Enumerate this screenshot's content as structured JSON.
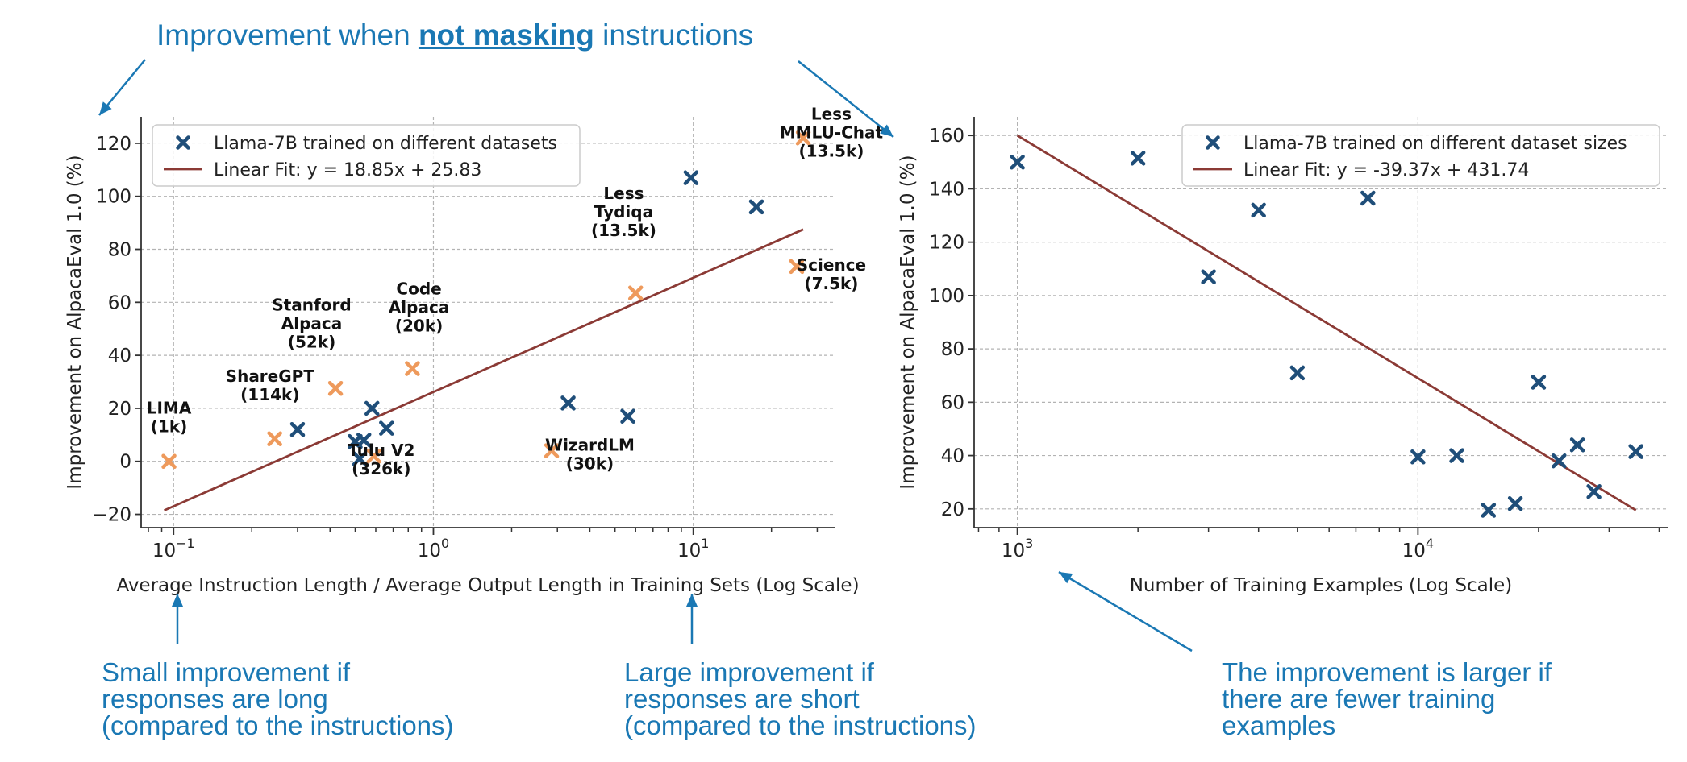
{
  "headline": {
    "prefix": "Improvement when ",
    "emphasis": "not masking",
    "suffix": " instructions"
  },
  "notes": {
    "left": "Small improvement if\nresponses are long\n(compared to the instructions)",
    "middle": "Large improvement if\nresponses are short\n(compared to the instructions)",
    "right": "The improvement is larger if\nthere are fewer training\nexamples"
  },
  "colors": {
    "blue_marker": "#1f4e79",
    "orange_marker": "#ee9a5c",
    "fit_line": "#8b3a35",
    "annotation": "#1a78b4"
  },
  "chart_data": [
    {
      "type": "scatter",
      "xscale": "log",
      "xlim": [
        0.075,
        35
      ],
      "ylim": [
        -25,
        130
      ],
      "xlabel": "Average Instruction Length / Average Output Length in Training Sets (Log Scale)",
      "ylabel": "Improvement on AlpacaEval 1.0 (%)",
      "xticks": [
        {
          "value": 0.1,
          "base": "10",
          "exp": "−1"
        },
        {
          "value": 1,
          "base": "10",
          "exp": "0"
        },
        {
          "value": 10,
          "base": "10",
          "exp": "1"
        }
      ],
      "yticks": [
        {
          "value": -20,
          "label": "−20"
        },
        {
          "value": 0,
          "label": "0"
        },
        {
          "value": 20,
          "label": "20"
        },
        {
          "value": 40,
          "label": "40"
        },
        {
          "value": 60,
          "label": "60"
        },
        {
          "value": 80,
          "label": "80"
        },
        {
          "value": 100,
          "label": "100"
        },
        {
          "value": 120,
          "label": "120"
        }
      ],
      "grid": true,
      "legend_position": "upper-left",
      "legend": [
        {
          "kind": "marker",
          "label": "Llama-7B trained on different datasets"
        },
        {
          "kind": "line",
          "label": "Linear Fit: y = 18.85x + 25.83"
        }
      ],
      "series": [
        {
          "color": "blue",
          "points": [
            {
              "x": 0.3,
              "y": 12
            },
            {
              "x": 0.5,
              "y": 7.5
            },
            {
              "x": 0.54,
              "y": 8
            },
            {
              "x": 0.58,
              "y": 20
            },
            {
              "x": 0.52,
              "y": 1
            },
            {
              "x": 0.66,
              "y": 12.5
            },
            {
              "x": 3.3,
              "y": 22
            },
            {
              "x": 5.6,
              "y": 17
            },
            {
              "x": 9.8,
              "y": 107
            },
            {
              "x": 17.5,
              "y": 96
            }
          ]
        },
        {
          "color": "orange",
          "points": [
            {
              "x": 0.096,
              "y": 0
            },
            {
              "x": 0.245,
              "y": 8.5
            },
            {
              "x": 0.42,
              "y": 27.5
            },
            {
              "x": 0.59,
              "y": 2
            },
            {
              "x": 0.83,
              "y": 35
            },
            {
              "x": 2.85,
              "y": 4
            },
            {
              "x": 6.0,
              "y": 63.5
            },
            {
              "x": 25,
              "y": 73.5
            },
            {
              "x": 26.5,
              "y": 122
            }
          ]
        }
      ],
      "fit_line": {
        "from": {
          "x": 0.092,
          "y": -18.5
        },
        "to": {
          "x": 26.5,
          "y": 87.5
        }
      },
      "labels": [
        {
          "text": "LIMA\n(1k)",
          "x": 0.096,
          "y": 11
        },
        {
          "text": "ShareGPT\n(114k)",
          "x": 0.235,
          "y": 23
        },
        {
          "text": "Stanford\nAlpaca\n(52k)",
          "x": 0.34,
          "y": 43
        },
        {
          "text": "Code\nAlpaca\n(20k)",
          "x": 0.88,
          "y": 49
        },
        {
          "text": "Tulu V2\n(326k)",
          "x": 0.63,
          "y": -5
        },
        {
          "text": "WizardLM\n(30k)",
          "x": 4.0,
          "y": -3
        },
        {
          "text": "Less\nTydiqa\n(13.5k)",
          "x": 5.4,
          "y": 85
        },
        {
          "text": "Science\n(7.5k)",
          "x": 34,
          "y": 65
        },
        {
          "text": "Less\nMMLU-Chat\n(13.5k)",
          "x": 34,
          "y": 115
        }
      ]
    },
    {
      "type": "scatter",
      "xscale": "log",
      "xlim": [
        780,
        42000
      ],
      "ylim": [
        13,
        167
      ],
      "xlabel": "Number of Training Examples (Log Scale)",
      "ylabel": "Improvement on AlpacaEval 1.0 (%)",
      "xticks": [
        {
          "value": 1000,
          "base": "10",
          "exp": "3"
        },
        {
          "value": 10000,
          "base": "10",
          "exp": "4"
        }
      ],
      "yticks": [
        {
          "value": 20,
          "label": "20"
        },
        {
          "value": 40,
          "label": "40"
        },
        {
          "value": 60,
          "label": "60"
        },
        {
          "value": 80,
          "label": "80"
        },
        {
          "value": 100,
          "label": "100"
        },
        {
          "value": 120,
          "label": "120"
        },
        {
          "value": 140,
          "label": "140"
        },
        {
          "value": 160,
          "label": "160"
        }
      ],
      "grid": true,
      "legend_position": "upper-right",
      "legend": [
        {
          "kind": "marker",
          "label": "Llama-7B trained on different dataset sizes"
        },
        {
          "kind": "line",
          "label": "Linear Fit: y = -39.37x + 431.74"
        }
      ],
      "series": [
        {
          "color": "blue",
          "points": [
            {
              "x": 1000,
              "y": 150
            },
            {
              "x": 2000,
              "y": 151.5
            },
            {
              "x": 3000,
              "y": 107
            },
            {
              "x": 4000,
              "y": 132
            },
            {
              "x": 5000,
              "y": 71
            },
            {
              "x": 7500,
              "y": 136.5
            },
            {
              "x": 10000,
              "y": 39.5
            },
            {
              "x": 12500,
              "y": 40
            },
            {
              "x": 15000,
              "y": 19.5
            },
            {
              "x": 17500,
              "y": 22
            },
            {
              "x": 20000,
              "y": 67.5
            },
            {
              "x": 22500,
              "y": 38
            },
            {
              "x": 25000,
              "y": 44
            },
            {
              "x": 27500,
              "y": 26.5
            },
            {
              "x": 35000,
              "y": 41.5
            }
          ]
        }
      ],
      "fit_line": {
        "from": {
          "x": 1000,
          "y": 160
        },
        "to": {
          "x": 35000,
          "y": 19.5
        }
      }
    }
  ]
}
